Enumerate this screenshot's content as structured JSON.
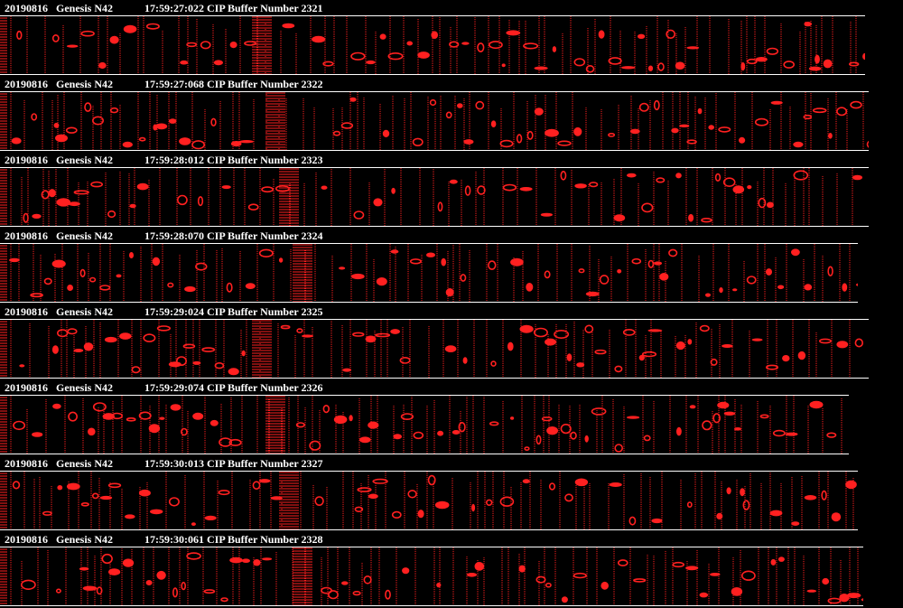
{
  "colors": {
    "background": "#000000",
    "text": "#ffffff",
    "particles": "#ff2020",
    "rule": "#ffffff"
  },
  "buffers": [
    {
      "date": "20190816",
      "probe": "Genesis N42",
      "time_buffer": "17:59:27:022 CIP Buffer Number 2321"
    },
    {
      "date": "20190816",
      "probe": "Genesis N42",
      "time_buffer": "17:59:27:068 CIP Buffer Number 2322"
    },
    {
      "date": "20190816",
      "probe": "Genesis N42",
      "time_buffer": "17:59:28:012 CIP Buffer Number 2323"
    },
    {
      "date": "20190816",
      "probe": "Genesis N42",
      "time_buffer": "17:59:28:070 CIP Buffer Number 2324"
    },
    {
      "date": "20190816",
      "probe": "Genesis N42",
      "time_buffer": "17:59:29:024 CIP Buffer Number 2325"
    },
    {
      "date": "20190816",
      "probe": "Genesis N42",
      "time_buffer": "17:59:29:074 CIP Buffer Number 2326"
    },
    {
      "date": "20190816",
      "probe": "Genesis N42",
      "time_buffer": "17:59:30:013 CIP Buffer Number 2327"
    },
    {
      "date": "20190816",
      "probe": "Genesis N42",
      "time_buffer": "17:59:30:061 CIP Buffer Number 2328"
    }
  ]
}
